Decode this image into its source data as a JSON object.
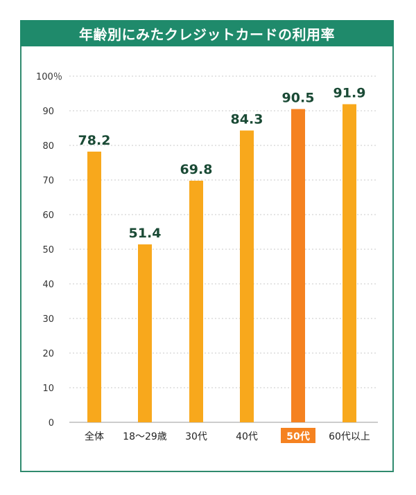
{
  "chart_data": {
    "type": "bar",
    "title": "年齢別にみたクレジットカードの利用率",
    "unit_label": "100％",
    "categories": [
      "全体",
      "18〜29歳",
      "30代",
      "40代",
      "50代",
      "60代以上"
    ],
    "values": [
      78.2,
      51.4,
      69.8,
      84.3,
      90.5,
      91.9
    ],
    "value_labels": [
      "78.2",
      "51.4",
      "69.8",
      "84.3",
      "90.5",
      "91.9"
    ],
    "highlight_index": 4,
    "ylim": [
      0,
      100
    ],
    "yticks": [
      0,
      10,
      20,
      30,
      40,
      50,
      60,
      70,
      80,
      90
    ],
    "grid": true,
    "colors": {
      "bar": "#f8a81c",
      "highlight": "#f58220",
      "highlight_label_text": "#ffffff",
      "value_label": "#1a4a35"
    }
  }
}
